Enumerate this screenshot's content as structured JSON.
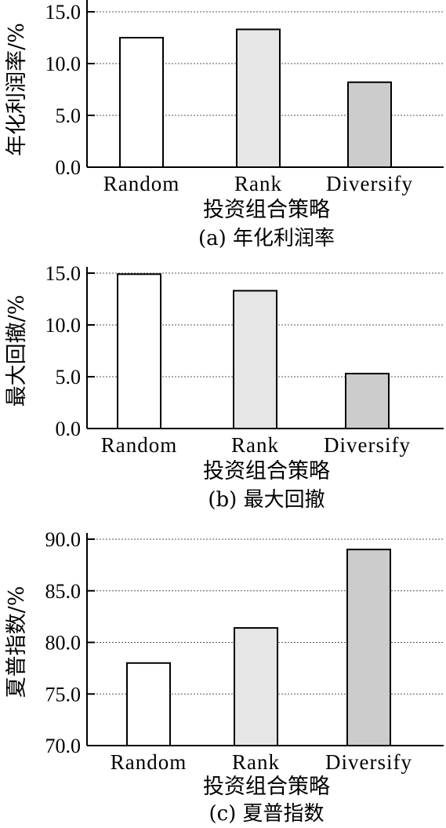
{
  "chart_data": [
    {
      "type": "bar",
      "categories": [
        "Random",
        "Rank",
        "Diversify"
      ],
      "values": [
        12.5,
        13.3,
        8.2
      ],
      "xlabel": "投资组合策略",
      "ylabel": "年化利润率/%",
      "caption": "(a) 年化利润率",
      "ylim": [
        0,
        15
      ],
      "yticks": [
        "0.0",
        "5.0",
        "10.0",
        "15.0"
      ],
      "tick_values": [
        0,
        5,
        10,
        15
      ],
      "grid": true,
      "bar_colors": [
        "#ffffff",
        "#e6e6e6",
        "#cccccc"
      ]
    },
    {
      "type": "bar",
      "categories": [
        "Random",
        "Rank",
        "Diversify"
      ],
      "values": [
        14.9,
        13.3,
        5.3
      ],
      "xlabel": "投资组合策略",
      "ylabel": "最大回撤/%",
      "caption": "(b) 最大回撤",
      "ylim": [
        0,
        15
      ],
      "yticks": [
        "0.0",
        "5.0",
        "10.0",
        "15.0"
      ],
      "tick_values": [
        0,
        5,
        10,
        15
      ],
      "grid": true,
      "bar_colors": [
        "#ffffff",
        "#e6e6e6",
        "#cccccc"
      ]
    },
    {
      "type": "bar",
      "categories": [
        "Random",
        "Rank",
        "Diversify"
      ],
      "values": [
        78.0,
        81.4,
        89.0
      ],
      "xlabel": "投资组合策略",
      "ylabel": "夏普指数/%",
      "caption": "(c) 夏普指数",
      "ylim": [
        70,
        90
      ],
      "yticks": [
        "70.0",
        "75.0",
        "80.0",
        "85.0",
        "90.0"
      ],
      "tick_values": [
        70,
        75,
        80,
        85,
        90
      ],
      "grid": true,
      "bar_colors": [
        "#ffffff",
        "#e6e6e6",
        "#cccccc"
      ]
    }
  ]
}
